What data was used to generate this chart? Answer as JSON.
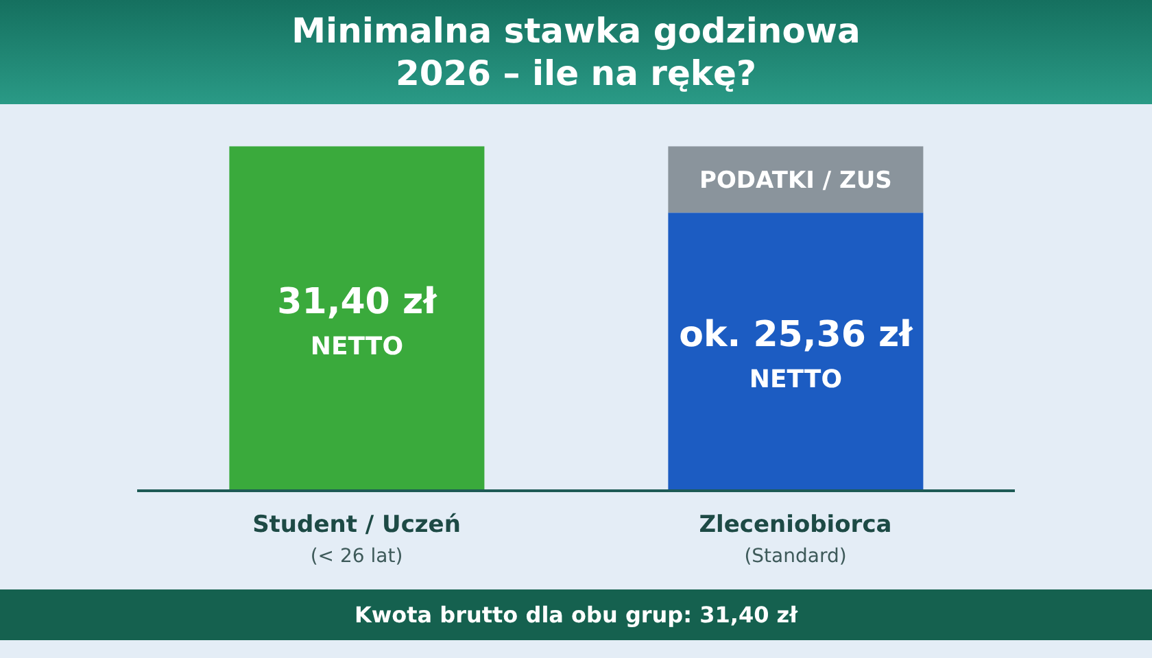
{
  "chart_data": {
    "type": "bar",
    "title": "Minimalna stawka godzinowa 2026 – ile na rękę?",
    "stacked": true,
    "categories": [
      "Student / Uczeń\n(< 26 lat)",
      "Zleceniobiorca\n(Standard)"
    ],
    "series": [
      {
        "name": "NETTO",
        "colors": [
          "#3aaa3c",
          "#1c5cc2"
        ],
        "values": [
          31.4,
          25.36
        ],
        "value_labels": [
          "31,40 zł",
          "ok. 25,36 zł"
        ]
      },
      {
        "name": "PODATKI / ZUS",
        "color": "#8a949c",
        "values": [
          null,
          6.04
        ]
      }
    ],
    "annotations": [
      "Kwota brutto dla obu grup: 31,40 zł"
    ]
  }
}
